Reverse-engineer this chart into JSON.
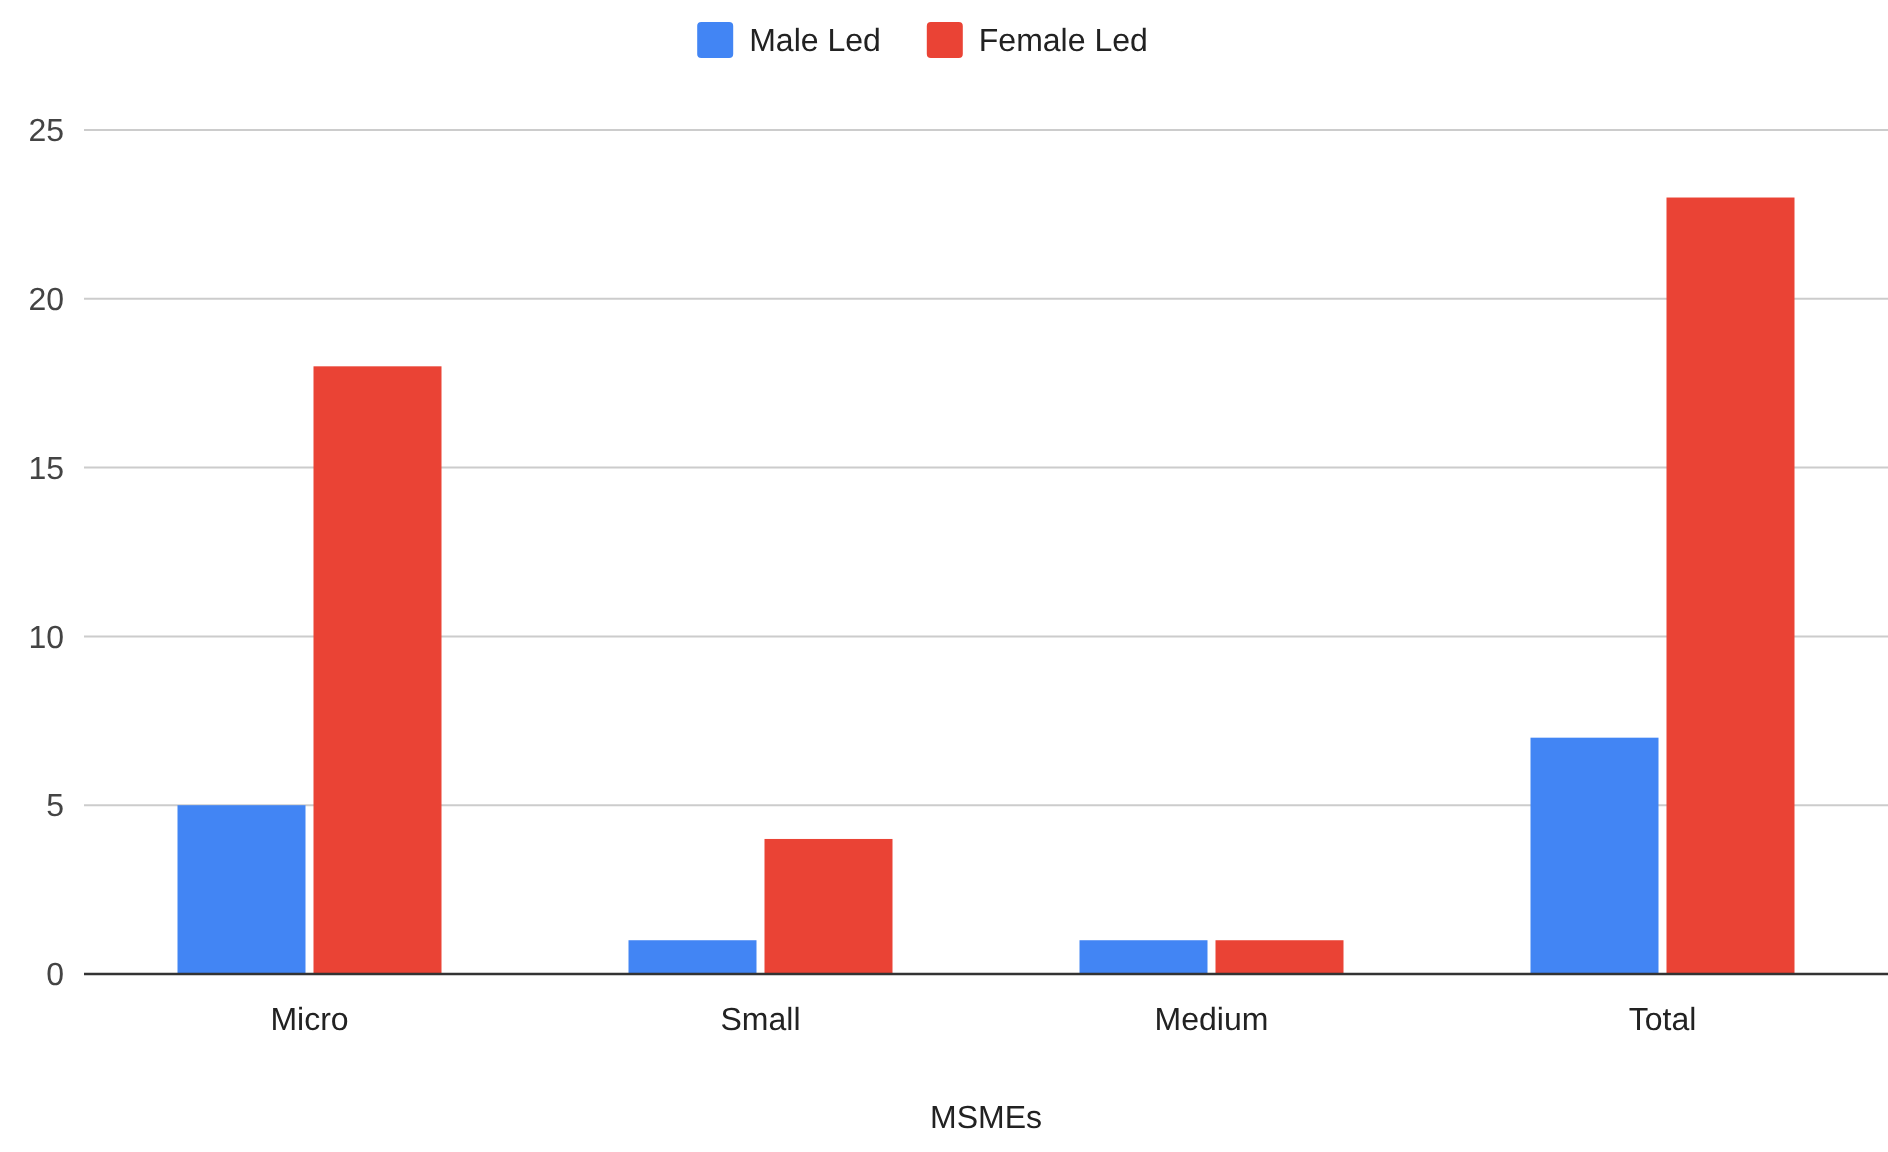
{
  "chart_data": {
    "type": "bar",
    "xlabel": "MSMEs",
    "categories": [
      "Micro",
      "Small",
      "Medium",
      "Total"
    ],
    "series": [
      {
        "name": "Male Led",
        "color": "#4285f4",
        "values": [
          5,
          1,
          1,
          7
        ]
      },
      {
        "name": "Female Led",
        "color": "#ea4335",
        "values": [
          18,
          4,
          1,
          23
        ]
      }
    ],
    "ylim": [
      0,
      25
    ],
    "yticks": [
      0,
      5,
      10,
      15,
      20,
      25
    ],
    "grid": "y",
    "legend": "top"
  }
}
